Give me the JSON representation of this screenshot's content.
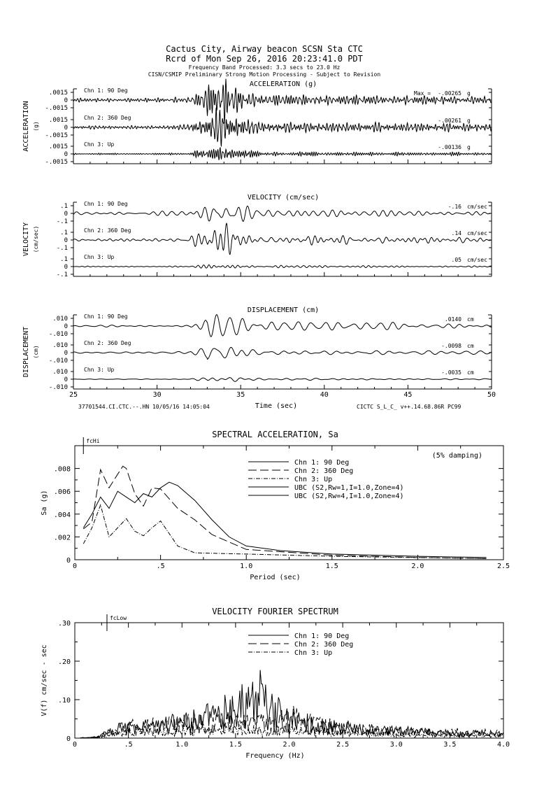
{
  "header": {
    "line1": "Cactus City, Airway beacon    SCSN Sta CTC",
    "line2": "Rcrd of Mon Sep 26, 2016 20:23:41.0 PDT",
    "line3": "Frequency Band Processed: 3.3 secs to 23.0 Hz",
    "line4": "CISN/CSMIP Preliminary Strong Motion Processing - Subject to Revision"
  },
  "footer": {
    "left": "37701544.CI.CTC.--.HN 10/05/16 14:05:04",
    "xlabel": "Time (sec)",
    "right": "CICTC  S_L_C_  v++.14.68.86R PC99"
  },
  "chart_data": [
    {
      "type": "line",
      "title": "ACCELERATION (g)",
      "ylabel": "ACCELERATION",
      "yunit": "(g)",
      "xlabel": "Time (sec)",
      "xlim": [
        25,
        50
      ],
      "x_ticks": [
        "25",
        "30",
        "35",
        "40",
        "45",
        "50"
      ],
      "y_ticks": [
        ".0015",
        "0",
        "-.0015"
      ],
      "max_label": "Max =",
      "channels": [
        {
          "name": "Chn 1: 90 Deg",
          "max": "-.00265",
          "unit": "g",
          "freq": 6,
          "amp": 1.0,
          "seed": 1
        },
        {
          "name": "Chn 2: 360 Deg",
          "max": "-.00261",
          "unit": "g",
          "freq": 6,
          "amp": 1.0,
          "seed": 2
        },
        {
          "name": "Chn 3: Up",
          "max": "-.00136",
          "unit": "g",
          "freq": 7,
          "amp": 0.5,
          "seed": 3
        }
      ]
    },
    {
      "type": "line",
      "title": "VELOCITY (cm/sec)",
      "ylabel": "VELOCITY",
      "yunit": "(cm/sec)",
      "xlim": [
        25,
        50
      ],
      "y_ticks": [
        ".1",
        "0",
        "-.1"
      ],
      "channels": [
        {
          "name": "Chn 1: 90 Deg",
          "max": "-.16",
          "unit": "cm/sec",
          "freq": 2.2,
          "amp": 1.0,
          "seed": 4
        },
        {
          "name": "Chn 2: 360 Deg",
          "max": ".14",
          "unit": "cm/sec",
          "freq": 2.2,
          "amp": 0.9,
          "seed": 5
        },
        {
          "name": "Chn 3: Up",
          "max": ".05",
          "unit": "cm/sec",
          "freq": 2.5,
          "amp": 0.35,
          "seed": 6
        }
      ]
    },
    {
      "type": "line",
      "title": "DISPLACEMENT (cm)",
      "ylabel": "DISPLACEMENT",
      "yunit": "(cm)",
      "xlim": [
        25,
        50
      ],
      "y_ticks": [
        ".010",
        "0",
        "-.010"
      ],
      "channels": [
        {
          "name": "Chn 1: 90 Deg",
          "max": ".0140",
          "unit": "cm",
          "freq": 1.3,
          "amp": 1.0,
          "seed": 7
        },
        {
          "name": "Chn 2: 360 Deg",
          "max": "-.0098",
          "unit": "cm",
          "freq": 1.3,
          "amp": 0.75,
          "seed": 8
        },
        {
          "name": "Chn 3: Up",
          "max": "-.0035",
          "unit": "cm",
          "freq": 1.4,
          "amp": 0.25,
          "seed": 9
        }
      ]
    },
    {
      "type": "line",
      "title": "SPECTRAL ACCELERATION, Sa",
      "annotation": "(5% damping)",
      "marker": "fcHi",
      "marker_x": 0.05,
      "xlabel": "Period (sec)",
      "ylabel": "Sa (g)",
      "xlim": [
        0,
        2.5
      ],
      "ylim": [
        0,
        0.01
      ],
      "x_ticks": [
        {
          "v": 0,
          "l": "0"
        },
        {
          "v": 0.5,
          "l": ".5"
        },
        {
          "v": 1.0,
          "l": "1.0"
        },
        {
          "v": 1.5,
          "l": "1.5"
        },
        {
          "v": 2.0,
          "l": "2.0"
        },
        {
          "v": 2.5,
          "l": "2.5"
        }
      ],
      "y_ticks": [
        {
          "v": 0,
          "l": "0"
        },
        {
          "v": 0.002,
          "l": ".002"
        },
        {
          "v": 0.004,
          "l": ".004"
        },
        {
          "v": 0.006,
          "l": ".006"
        },
        {
          "v": 0.008,
          "l": ".008"
        }
      ],
      "legend": [
        "Chn 1: 90 Deg",
        "Chn 2: 360 Deg",
        "Chn 3: Up",
        "UBC (S2,Rw=1,I=1.0,Zone=4)",
        "UBC (S2,Rw=4,I=1.0,Zone=4)"
      ],
      "series": [
        {
          "name": "Chn 1: 90 Deg",
          "dash": "",
          "x": [
            0.05,
            0.1,
            0.15,
            0.2,
            0.25,
            0.3,
            0.35,
            0.4,
            0.45,
            0.5,
            0.55,
            0.6,
            0.7,
            0.8,
            0.9,
            1.0,
            1.2,
            1.5,
            2.0,
            2.4
          ],
          "y": [
            0.0028,
            0.004,
            0.0055,
            0.0045,
            0.006,
            0.0055,
            0.005,
            0.0058,
            0.0055,
            0.0063,
            0.0068,
            0.0065,
            0.0052,
            0.0035,
            0.002,
            0.0012,
            0.0008,
            0.0005,
            0.0003,
            0.0002
          ]
        },
        {
          "name": "Chn 2: 360 Deg",
          "dash": "12,5",
          "x": [
            0.05,
            0.1,
            0.15,
            0.2,
            0.25,
            0.28,
            0.3,
            0.35,
            0.4,
            0.45,
            0.5,
            0.6,
            0.7,
            0.8,
            1.0,
            1.5,
            2.0,
            2.4
          ],
          "y": [
            0.0027,
            0.0033,
            0.0079,
            0.0063,
            0.0075,
            0.0082,
            0.008,
            0.0058,
            0.0047,
            0.0063,
            0.0062,
            0.0045,
            0.0035,
            0.0022,
            0.0009,
            0.0004,
            0.0002,
            0.0001
          ]
        },
        {
          "name": "Chn 3: Up",
          "dash": "6,2,1,2",
          "x": [
            0.05,
            0.1,
            0.15,
            0.2,
            0.25,
            0.3,
            0.35,
            0.4,
            0.45,
            0.5,
            0.55,
            0.6,
            0.7,
            1.0,
            1.5,
            2.4
          ],
          "y": [
            0.0014,
            0.0028,
            0.0048,
            0.002,
            0.0028,
            0.0036,
            0.0025,
            0.0021,
            0.0028,
            0.0034,
            0.0023,
            0.0012,
            0.0006,
            0.0005,
            0.0003,
            0.0001
          ]
        }
      ]
    },
    {
      "type": "line",
      "title": "VELOCITY FOURIER SPECTRUM",
      "marker": "fcLow",
      "marker_x": 0.3,
      "xlabel": "Frequency (Hz)",
      "ylabel": "V(f)   cm/sec - sec",
      "xlim": [
        0,
        4.0
      ],
      "ylim": [
        0,
        0.3
      ],
      "x_ticks": [
        {
          "v": 0,
          "l": "0"
        },
        {
          "v": 0.5,
          "l": ".5"
        },
        {
          "v": 1.0,
          "l": "1.0"
        },
        {
          "v": 1.5,
          "l": "1.5"
        },
        {
          "v": 2.0,
          "l": "2.0"
        },
        {
          "v": 2.5,
          "l": "2.5"
        },
        {
          "v": 3.0,
          "l": "3.0"
        },
        {
          "v": 3.5,
          "l": "3.5"
        },
        {
          "v": 4.0,
          "l": "4.0"
        }
      ],
      "y_ticks": [
        {
          "v": 0,
          "l": "0"
        },
        {
          "v": 0.1,
          "l": ".10"
        },
        {
          "v": 0.2,
          "l": ".20"
        },
        {
          "v": 0.3,
          "l": ".30"
        }
      ],
      "legend": [
        "Chn 1: 90 Deg",
        "Chn 2: 360 Deg",
        "Chn 3: Up"
      ],
      "series": [
        {
          "name": "Chn 1: 90 Deg",
          "dash": "",
          "seed": 11,
          "envelope_x": [
            0.2,
            0.5,
            1.0,
            1.3,
            1.6,
            1.75,
            1.8,
            2.0,
            2.3,
            3.0,
            4.0
          ],
          "envelope_y": [
            0.005,
            0.05,
            0.06,
            0.1,
            0.14,
            0.19,
            0.12,
            0.08,
            0.05,
            0.03,
            0.02
          ]
        },
        {
          "name": "Chn 2: 360 Deg",
          "dash": "12,5",
          "seed": 12,
          "envelope_x": [
            0.2,
            0.5,
            1.0,
            1.5,
            1.8,
            2.1,
            2.5,
            3.0,
            4.0
          ],
          "envelope_y": [
            0.005,
            0.05,
            0.06,
            0.07,
            0.08,
            0.08,
            0.04,
            0.03,
            0.02
          ]
        },
        {
          "name": "Chn 3: Up",
          "dash": "6,2,1,2",
          "seed": 13,
          "envelope_x": [
            0.2,
            0.5,
            1.0,
            1.5,
            2.0,
            3.0,
            4.0
          ],
          "envelope_y": [
            0.003,
            0.025,
            0.03,
            0.035,
            0.03,
            0.015,
            0.01
          ]
        }
      ]
    }
  ]
}
